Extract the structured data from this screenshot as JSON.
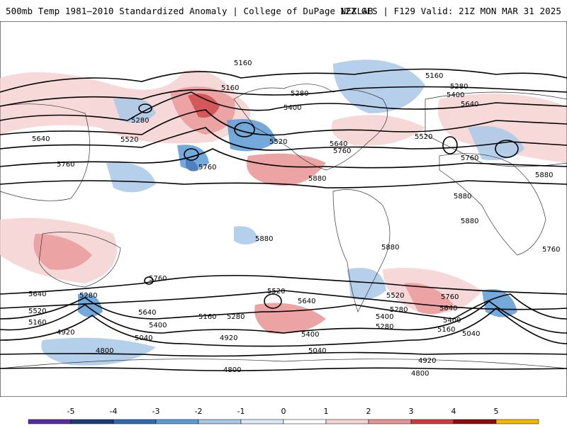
{
  "header": {
    "title_left": "500mb Temp 1981–2010 Standardized Anomaly | College of DuPage NEXLAB",
    "title_right": "12Z GFS | F129 Valid: 21Z MON MAR 31 2025"
  },
  "colorbar": {
    "ticks": [
      "-5",
      "-4",
      "-3",
      "-2",
      "-1",
      "0",
      "1",
      "2",
      "3",
      "4",
      "5"
    ],
    "colors": [
      "#5a2ca0",
      "#1d3b7a",
      "#2f6bb5",
      "#5b9bd5",
      "#a9c8e8",
      "#dbe8f5",
      "#ffffff",
      "#f6d2d2",
      "#e89393",
      "#cc3b3b",
      "#8c0b0b",
      "#f5b700"
    ]
  },
  "contour_labels": [
    "5160",
    "5160",
    "5280",
    "5400",
    "5400",
    "5640",
    "5520",
    "5280",
    "5520",
    "5640",
    "5760",
    "5760",
    "5880",
    "5880",
    "5880",
    "5880",
    "5880",
    "5760",
    "5760",
    "5640",
    "5520",
    "5280",
    "5160",
    "4920",
    "4800",
    "5520",
    "5640",
    "5400",
    "5280",
    "5160",
    "5040",
    "4920",
    "5040",
    "4800",
    "4920",
    "4800",
    "5160",
    "5280",
    "5400",
    "5640",
    "5760",
    "5520",
    "5640",
    "5760",
    "5640",
    "5400",
    "5280",
    "5160",
    "5040",
    "5400",
    "5280",
    "5520",
    "5880",
    "5760"
  ]
}
